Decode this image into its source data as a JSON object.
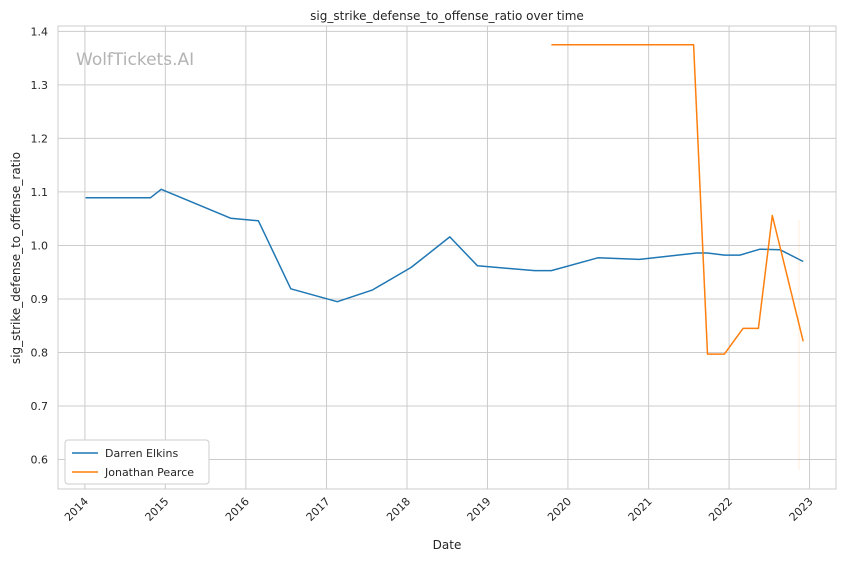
{
  "chart_data": {
    "type": "line",
    "title": "sig_strike_defense_to_offense_ratio over time",
    "xlabel": "Date",
    "ylabel": "sig_strike_defense_to_offense_ratio",
    "watermark": "WolfTickets.AI",
    "x_ticks": [
      "2014",
      "2015",
      "2016",
      "2017",
      "2018",
      "2019",
      "2020",
      "2021",
      "2022",
      "2023"
    ],
    "y_ticks": [
      "0.6",
      "0.7",
      "0.8",
      "0.9",
      "1.0",
      "1.1",
      "1.2",
      "1.3",
      "1.4"
    ],
    "xlim": [
      "2013-09-01",
      "2023-05-01"
    ],
    "ylim": [
      0.545,
      1.41
    ],
    "grid": true,
    "legend_position": "lower-left",
    "series": [
      {
        "name": "Darren Elkins",
        "color": "#1f77b4",
        "points": [
          [
            "2014-01-04",
            1.089
          ],
          [
            "2014-10-25",
            1.089
          ],
          [
            "2014-12-13",
            1.105
          ],
          [
            "2015-10-24",
            1.051
          ],
          [
            "2016-02-27",
            1.046
          ],
          [
            "2016-07-23",
            0.919
          ],
          [
            "2017-02-19",
            0.895
          ],
          [
            "2017-07-29",
            0.917
          ],
          [
            "2018-01-20",
            0.959
          ],
          [
            "2018-07-14",
            1.016
          ],
          [
            "2018-11-17",
            0.962
          ],
          [
            "2019-08-03",
            0.953
          ],
          [
            "2019-10-18",
            0.953
          ],
          [
            "2020-05-16",
            0.977
          ],
          [
            "2020-11-21",
            0.974
          ],
          [
            "2021-08-07",
            0.986
          ],
          [
            "2021-09-25",
            0.986
          ],
          [
            "2021-12-11",
            0.982
          ],
          [
            "2022-02-19",
            0.982
          ],
          [
            "2022-05-21",
            0.993
          ],
          [
            "2022-08-20",
            0.992
          ],
          [
            "2022-12-03",
            0.97
          ]
        ]
      },
      {
        "name": "Jonathan Pearce",
        "color": "#ff7f0e",
        "points": [
          [
            "2019-10-18",
            1.375
          ],
          [
            "2021-07-24",
            1.375
          ],
          [
            "2021-09-25",
            0.797
          ],
          [
            "2021-12-11",
            0.797
          ],
          [
            "2022-03-05",
            0.845
          ],
          [
            "2022-05-14",
            0.845
          ],
          [
            "2022-07-16",
            1.056
          ],
          [
            "2022-12-03",
            0.821
          ]
        ]
      }
    ]
  }
}
